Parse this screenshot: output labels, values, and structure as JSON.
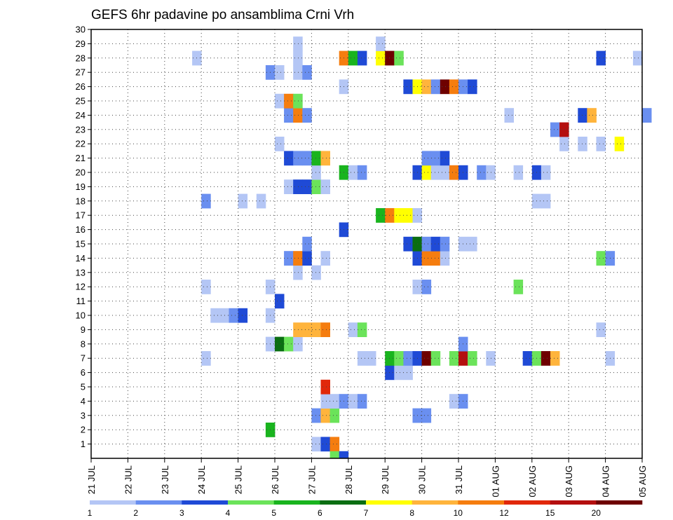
{
  "chart_data": {
    "type": "heatmap",
    "title": "GEFS 6hr padavine po ansamblima Crni Vrh",
    "xlabel": "",
    "ylabel": "",
    "x_tick_labels": [
      "21 JUL",
      "22 JUL",
      "23 JUL",
      "24 JUL",
      "25 JUL",
      "26 JUL",
      "27 JUL",
      "28 JUL",
      "29 JUL",
      "30 JUL",
      "31 JUL",
      "01 AUG",
      "02 AUG",
      "03 AUG",
      "04 AUG",
      "05 AUG"
    ],
    "x_range_days": [
      0,
      15
    ],
    "y_tick_labels": [
      "1",
      "2",
      "3",
      "4",
      "5",
      "6",
      "7",
      "8",
      "9",
      "10",
      "11",
      "12",
      "13",
      "14",
      "15",
      "16",
      "17",
      "18",
      "19",
      "20",
      "21",
      "22",
      "23",
      "24",
      "25",
      "26",
      "27",
      "28",
      "29",
      "30"
    ],
    "y_range": [
      0,
      30
    ],
    "grid": "dotted",
    "legend_position": "bottom",
    "legend": {
      "colors": [
        "#b4c6f5",
        "#6a8ff0",
        "#1f4ad6",
        "#6be35a",
        "#19b41e",
        "#0a6e12",
        "#ffff00",
        "#ffb43c",
        "#f57d0f",
        "#e1280a",
        "#b40f0f",
        "#6e0000"
      ],
      "labels": [
        "1",
        "2",
        "3",
        "4",
        "5",
        "6",
        "7",
        "8",
        "10",
        "12",
        "15",
        "20"
      ]
    },
    "cells": [
      [
        1,
        6.0,
        1
      ],
      [
        1,
        6.25,
        3
      ],
      [
        1,
        6.5,
        9
      ],
      [
        2,
        4.75,
        5
      ],
      [
        3,
        6.0,
        2
      ],
      [
        3,
        6.25,
        8
      ],
      [
        3,
        6.5,
        4
      ],
      [
        3,
        8.75,
        2
      ],
      [
        3,
        9.0,
        2
      ],
      [
        4,
        6.25,
        1
      ],
      [
        4,
        6.5,
        1
      ],
      [
        4,
        6.75,
        2
      ],
      [
        4,
        7.0,
        1
      ],
      [
        4,
        7.25,
        2
      ],
      [
        4,
        9.75,
        1
      ],
      [
        4,
        10.0,
        2
      ],
      [
        5,
        6.25,
        10
      ],
      [
        6,
        8.0,
        3
      ],
      [
        6,
        8.25,
        1
      ],
      [
        6,
        8.5,
        1
      ],
      [
        7,
        3.0,
        1
      ],
      [
        7,
        7.25,
        1
      ],
      [
        7,
        7.5,
        1
      ],
      [
        7,
        8.0,
        5
      ],
      [
        7,
        8.25,
        4
      ],
      [
        7,
        8.5,
        2
      ],
      [
        7,
        8.75,
        3
      ],
      [
        7,
        9.0,
        12
      ],
      [
        7,
        9.25,
        4
      ],
      [
        7,
        9.75,
        4
      ],
      [
        7,
        10.0,
        11
      ],
      [
        7,
        10.25,
        4
      ],
      [
        7,
        10.75,
        1
      ],
      [
        7,
        11.75,
        3
      ],
      [
        7,
        12.0,
        4
      ],
      [
        7,
        12.25,
        12
      ],
      [
        7,
        12.5,
        8
      ],
      [
        7,
        14.0,
        1
      ],
      [
        8,
        4.75,
        1
      ],
      [
        8,
        5.0,
        6
      ],
      [
        8,
        5.25,
        4
      ],
      [
        8,
        5.5,
        1
      ],
      [
        8,
        10.0,
        2
      ],
      [
        9,
        5.5,
        8
      ],
      [
        9,
        5.75,
        8
      ],
      [
        9,
        6.0,
        8
      ],
      [
        9,
        6.25,
        9
      ],
      [
        9,
        7.0,
        1
      ],
      [
        9,
        7.25,
        4
      ],
      [
        9,
        13.75,
        1
      ],
      [
        10,
        3.25,
        1
      ],
      [
        10,
        3.5,
        1
      ],
      [
        10,
        3.75,
        2
      ],
      [
        10,
        4.0,
        3
      ],
      [
        10,
        4.75,
        1
      ],
      [
        11,
        5.0,
        3
      ],
      [
        12,
        3.0,
        1
      ],
      [
        12,
        4.75,
        1
      ],
      [
        12,
        8.75,
        1
      ],
      [
        12,
        9.0,
        2
      ],
      [
        12,
        11.5,
        4
      ],
      [
        13,
        5.5,
        1
      ],
      [
        13,
        6.0,
        1
      ],
      [
        14,
        5.25,
        2
      ],
      [
        14,
        5.5,
        9
      ],
      [
        14,
        5.75,
        3
      ],
      [
        14,
        6.25,
        1
      ],
      [
        14,
        8.75,
        3
      ],
      [
        14,
        9.0,
        9
      ],
      [
        14,
        9.25,
        9
      ],
      [
        14,
        9.5,
        1
      ],
      [
        14,
        13.75,
        4
      ],
      [
        14,
        14.0,
        2
      ],
      [
        15,
        5.75,
        2
      ],
      [
        15,
        8.5,
        3
      ],
      [
        15,
        8.75,
        6
      ],
      [
        15,
        9.0,
        2
      ],
      [
        15,
        9.25,
        3
      ],
      [
        15,
        9.5,
        2
      ],
      [
        15,
        10.0,
        1
      ],
      [
        15,
        10.25,
        1
      ],
      [
        16,
        6.75,
        3
      ],
      [
        17,
        7.75,
        5
      ],
      [
        17,
        8.0,
        9
      ],
      [
        17,
        8.25,
        7
      ],
      [
        17,
        8.5,
        7
      ],
      [
        17,
        8.75,
        1
      ],
      [
        18,
        3.0,
        2
      ],
      [
        18,
        4.0,
        1
      ],
      [
        18,
        4.5,
        1
      ],
      [
        18,
        12.0,
        1
      ],
      [
        18,
        12.25,
        1
      ],
      [
        19,
        5.25,
        1
      ],
      [
        19,
        5.5,
        3
      ],
      [
        19,
        5.75,
        3
      ],
      [
        19,
        6.0,
        4
      ],
      [
        19,
        6.25,
        1
      ],
      [
        20,
        6.0,
        1
      ],
      [
        20,
        6.75,
        5
      ],
      [
        20,
        7.0,
        1
      ],
      [
        20,
        7.25,
        2
      ],
      [
        20,
        8.75,
        3
      ],
      [
        20,
        9.0,
        7
      ],
      [
        20,
        9.25,
        1
      ],
      [
        20,
        9.5,
        1
      ],
      [
        20,
        9.75,
        9
      ],
      [
        20,
        10.0,
        3
      ],
      [
        20,
        10.5,
        2
      ],
      [
        20,
        10.75,
        1
      ],
      [
        20,
        11.5,
        1
      ],
      [
        20,
        12.0,
        3
      ],
      [
        20,
        12.25,
        1
      ],
      [
        21,
        5.25,
        3
      ],
      [
        21,
        5.5,
        2
      ],
      [
        21,
        5.75,
        2
      ],
      [
        21,
        6.0,
        5
      ],
      [
        21,
        6.25,
        8
      ],
      [
        21,
        9.0,
        2
      ],
      [
        21,
        9.25,
        2
      ],
      [
        21,
        9.5,
        3
      ],
      [
        22,
        5.0,
        1
      ],
      [
        22,
        12.75,
        1
      ],
      [
        22,
        13.25,
        1
      ],
      [
        22,
        13.75,
        1
      ],
      [
        22,
        14.25,
        7
      ],
      [
        23,
        12.5,
        2
      ],
      [
        23,
        12.75,
        11
      ],
      [
        24,
        5.25,
        2
      ],
      [
        24,
        5.5,
        9
      ],
      [
        24,
        5.75,
        2
      ],
      [
        24,
        11.25,
        1
      ],
      [
        24,
        13.25,
        3
      ],
      [
        24,
        13.5,
        8
      ],
      [
        24,
        15.0,
        2
      ],
      [
        25,
        5.0,
        1
      ],
      [
        25,
        5.25,
        9
      ],
      [
        25,
        5.5,
        4
      ],
      [
        26,
        6.75,
        1
      ],
      [
        26,
        8.5,
        3
      ],
      [
        26,
        8.75,
        7
      ],
      [
        26,
        9.0,
        8
      ],
      [
        26,
        9.25,
        2
      ],
      [
        26,
        9.5,
        12
      ],
      [
        26,
        9.75,
        9
      ],
      [
        26,
        10.0,
        2
      ],
      [
        26,
        10.25,
        3
      ],
      [
        27,
        4.75,
        2
      ],
      [
        27,
        5.0,
        1
      ],
      [
        27,
        5.5,
        1
      ],
      [
        27,
        5.75,
        2
      ],
      [
        28,
        2.75,
        1
      ],
      [
        28,
        5.5,
        1
      ],
      [
        28,
        6.75,
        9
      ],
      [
        28,
        7.0,
        5
      ],
      [
        28,
        7.25,
        3
      ],
      [
        28,
        7.75,
        7
      ],
      [
        28,
        8.0,
        12
      ],
      [
        28,
        8.25,
        4
      ],
      [
        28,
        13.75,
        3
      ],
      [
        28,
        14.75,
        1
      ],
      [
        29,
        5.5,
        1
      ],
      [
        29,
        7.75,
        1
      ],
      [
        0,
        6.5,
        4
      ],
      [
        0,
        6.75,
        3
      ]
    ]
  }
}
